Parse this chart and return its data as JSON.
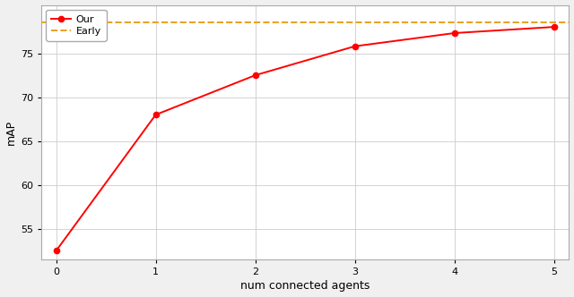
{
  "x": [
    0,
    1,
    2,
    3,
    4,
    5
  ],
  "our_y": [
    52.5,
    68.0,
    72.5,
    75.8,
    77.3,
    78.0
  ],
  "early_y": 78.5,
  "our_label": "Our",
  "early_label": "Early",
  "our_color": "#ff0000",
  "early_color": "#e8a020",
  "xlabel": "num connected agents",
  "ylabel": "mAP",
  "ylim": [
    51.5,
    80.5
  ],
  "xlim": [
    -0.15,
    5.15
  ],
  "yticks": [
    55,
    60,
    65,
    70,
    75
  ],
  "xticks": [
    0,
    1,
    2,
    3,
    4,
    5
  ],
  "grid_color": "#cccccc",
  "bg_color": "#ffffff",
  "fig_bg_color": "#f0f0f0",
  "linewidth": 1.4,
  "markersize": 4.5,
  "legend_fontsize": 8,
  "axis_fontsize": 9,
  "tick_fontsize": 8
}
